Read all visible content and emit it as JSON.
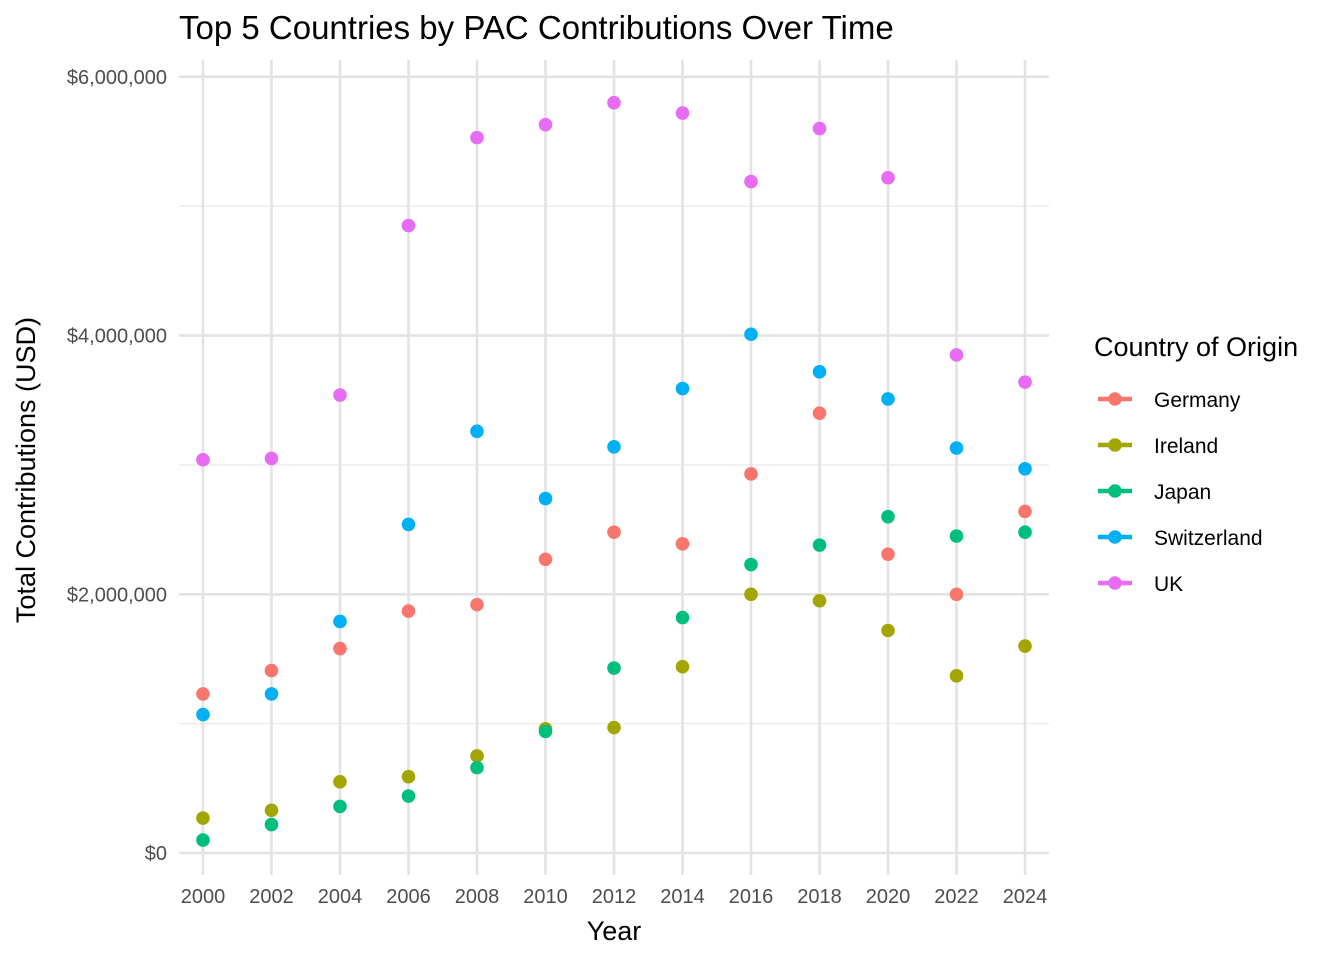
{
  "chart_data": {
    "type": "scatter",
    "title": "Top 5 Countries by PAC Contributions Over Time",
    "xlabel": "Year",
    "ylabel": "Total Contributions (USD)",
    "x": [
      2000,
      2002,
      2004,
      2006,
      2008,
      2010,
      2012,
      2014,
      2016,
      2018,
      2020,
      2022,
      2024
    ],
    "xlim": [
      1999.3,
      2024.7
    ],
    "ylim": [
      -170000,
      6130000
    ],
    "y_ticks": [
      0,
      2000000,
      4000000,
      6000000
    ],
    "y_tick_labels": [
      "$0",
      "$2,000,000",
      "$4,000,000",
      "$6,000,000"
    ],
    "y_minor_ticks": [
      1000000,
      3000000,
      5000000
    ],
    "x_ticks": [
      2000,
      2002,
      2004,
      2006,
      2008,
      2010,
      2012,
      2014,
      2016,
      2018,
      2020,
      2022,
      2024
    ],
    "x_tick_labels": [
      "2000",
      "2002",
      "2004",
      "2006",
      "2008",
      "2010",
      "2012",
      "2014",
      "2016",
      "2018",
      "2020",
      "2022",
      "2024"
    ],
    "grid": true,
    "legend_title": "Country of Origin",
    "legend_position": "right",
    "series": [
      {
        "name": "Germany",
        "color": "#F8766D",
        "values": [
          1230000,
          1410000,
          1580000,
          1870000,
          1920000,
          2270000,
          2480000,
          2390000,
          2930000,
          3400000,
          2310000,
          2000000,
          2640000
        ]
      },
      {
        "name": "Ireland",
        "color": "#A3A500",
        "values": [
          270000,
          330000,
          550000,
          590000,
          750000,
          960000,
          970000,
          1440000,
          2000000,
          1950000,
          1720000,
          1370000,
          1600000
        ]
      },
      {
        "name": "Japan",
        "color": "#00BF7D",
        "values": [
          100000,
          220000,
          360000,
          440000,
          660000,
          940000,
          1430000,
          1820000,
          2230000,
          2380000,
          2600000,
          2450000,
          2480000
        ]
      },
      {
        "name": "Switzerland",
        "color": "#00B0F6",
        "values": [
          1070000,
          1230000,
          1790000,
          2540000,
          3260000,
          2740000,
          3140000,
          3590000,
          4010000,
          3720000,
          3510000,
          3130000,
          2970000
        ]
      },
      {
        "name": "UK",
        "color": "#E76BF3",
        "values": [
          3040000,
          3050000,
          3540000,
          4850000,
          5530000,
          5630000,
          5800000,
          5720000,
          5190000,
          5600000,
          5220000,
          3850000,
          3640000
        ]
      }
    ]
  }
}
